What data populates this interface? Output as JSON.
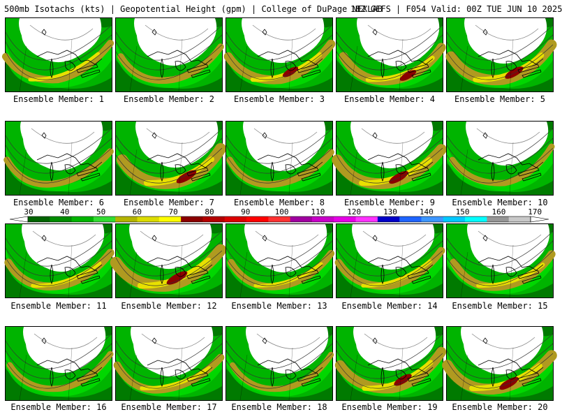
{
  "header": {
    "left_text": "500mb Isotachs (kts) | Geopotential Height (gpm) | College of DuPage NEXLAB",
    "right_text": "18Z GEFS | F054 Valid: 00Z TUE JUN 10 2025"
  },
  "members": [
    {
      "label": "Ensemble Member: 1",
      "jet": 0.35
    },
    {
      "label": "Ensemble Member: 2",
      "jet": 0.3
    },
    {
      "label": "Ensemble Member: 3",
      "jet": 0.55
    },
    {
      "label": "Ensemble Member: 4",
      "jet": 0.6
    },
    {
      "label": "Ensemble Member: 5",
      "jet": 0.75
    },
    {
      "label": "Ensemble Member: 6",
      "jet": 0.3
    },
    {
      "label": "Ensemble Member: 7",
      "jet": 0.85
    },
    {
      "label": "Ensemble Member: 8",
      "jet": 0.3
    },
    {
      "label": "Ensemble Member: 9",
      "jet": 0.8
    },
    {
      "label": "Ensemble Member: 10",
      "jet": 0.25
    },
    {
      "label": "Ensemble Member: 11",
      "jet": 0.45
    },
    {
      "label": "Ensemble Member: 12",
      "jet": 0.9
    },
    {
      "label": "Ensemble Member: 13",
      "jet": 0.35
    },
    {
      "label": "Ensemble Member: 14",
      "jet": 0.4
    },
    {
      "label": "Ensemble Member: 15",
      "jet": 0.45
    },
    {
      "label": "Ensemble Member: 16",
      "jet": 0.25
    },
    {
      "label": "Ensemble Member: 17",
      "jet": 0.4
    },
    {
      "label": "Ensemble Member: 18",
      "jet": 0.2
    },
    {
      "label": "Ensemble Member: 19",
      "jet": 0.7
    },
    {
      "label": "Ensemble Member: 20",
      "jet": 0.8
    }
  ],
  "colorbar": {
    "labels": [
      "30",
      "40",
      "50",
      "60",
      "70",
      "80",
      "90",
      "100",
      "110",
      "120",
      "130",
      "140",
      "150",
      "160",
      "170"
    ],
    "colors": [
      "#006400",
      "#008c00",
      "#00b400",
      "#32dc32",
      "#b4b400",
      "#dcdc00",
      "#ffff00",
      "#8b0000",
      "#b40000",
      "#dc0000",
      "#ff0000",
      "#ff3232",
      "#a000a0",
      "#c800c8",
      "#e600e6",
      "#ff32ff",
      "#0000c8",
      "#1e64ff",
      "#3c96ff",
      "#00c8ff",
      "#00ffff",
      "#969696",
      "#c8c8c8"
    ]
  },
  "palette": {
    "green_dark": "#007a00",
    "green": "#00b400",
    "green_light": "#00e000",
    "olive": "#b09a20",
    "yellow": "#e8e000",
    "dark_red": "#8b0000",
    "land_white": "#ffffff"
  }
}
